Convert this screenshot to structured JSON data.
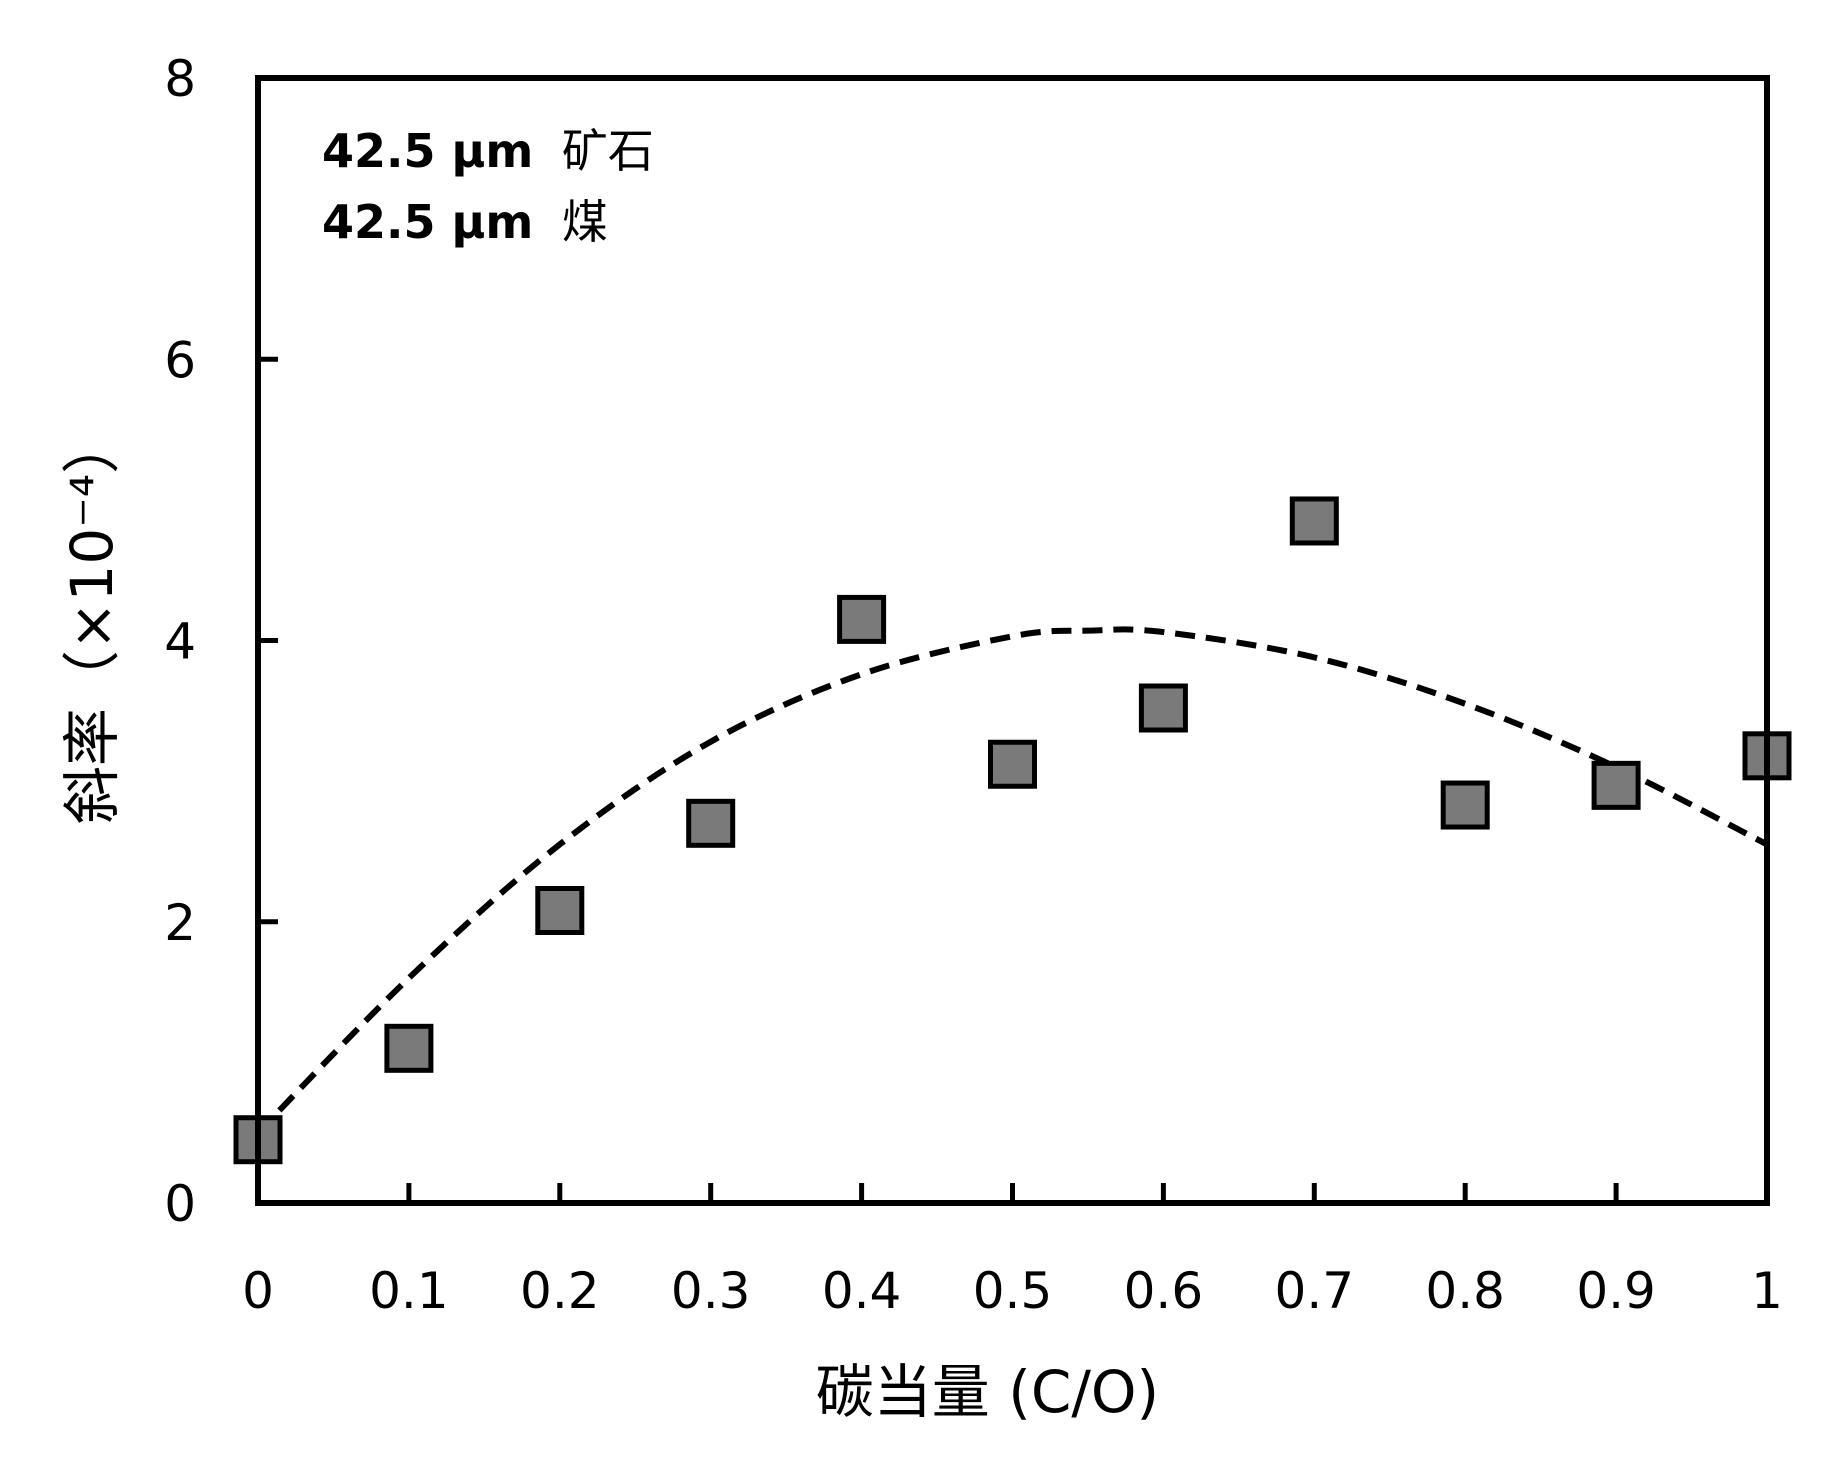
{
  "chart_data": {
    "type": "scatter",
    "xlabel": "碳当量 (C/O)",
    "ylabel": "斜率（×10⁻⁴）",
    "xlim": [
      0,
      1
    ],
    "ylim": [
      0,
      8
    ],
    "x_ticks": [
      "0",
      "0.1",
      "0.2",
      "0.3",
      "0.4",
      "0.5",
      "0.6",
      "0.7",
      "0.8",
      "0.9",
      "1"
    ],
    "y_ticks": [
      "0",
      "2",
      "4",
      "6",
      "8"
    ],
    "annotations": [
      {
        "bold_text": "42.5 μm",
        "text": "矿石"
      },
      {
        "bold_text": "42.5 μm",
        "text": "煤"
      }
    ],
    "series": [
      {
        "type": "scatter",
        "marker": "square",
        "color": "#7a7a7a",
        "x": [
          0,
          0.1,
          0.2,
          0.3,
          0.4,
          0.5,
          0.6,
          0.7,
          0.8,
          0.9,
          1.0
        ],
        "y": [
          0.45,
          1.1,
          2.08,
          2.7,
          4.15,
          3.12,
          3.52,
          4.85,
          2.83,
          2.97,
          3.18
        ]
      },
      {
        "type": "line",
        "style": "dashed",
        "color": "#000000",
        "x": [
          0,
          0.1,
          0.2,
          0.3,
          0.4,
          0.5,
          0.55,
          0.6,
          0.7,
          0.8,
          0.9,
          1.0
        ],
        "y": [
          0.5,
          1.6,
          2.55,
          3.28,
          3.76,
          4.03,
          4.07,
          4.06,
          3.88,
          3.55,
          3.1,
          2.55
        ]
      }
    ],
    "grid": false,
    "legend": "none"
  }
}
